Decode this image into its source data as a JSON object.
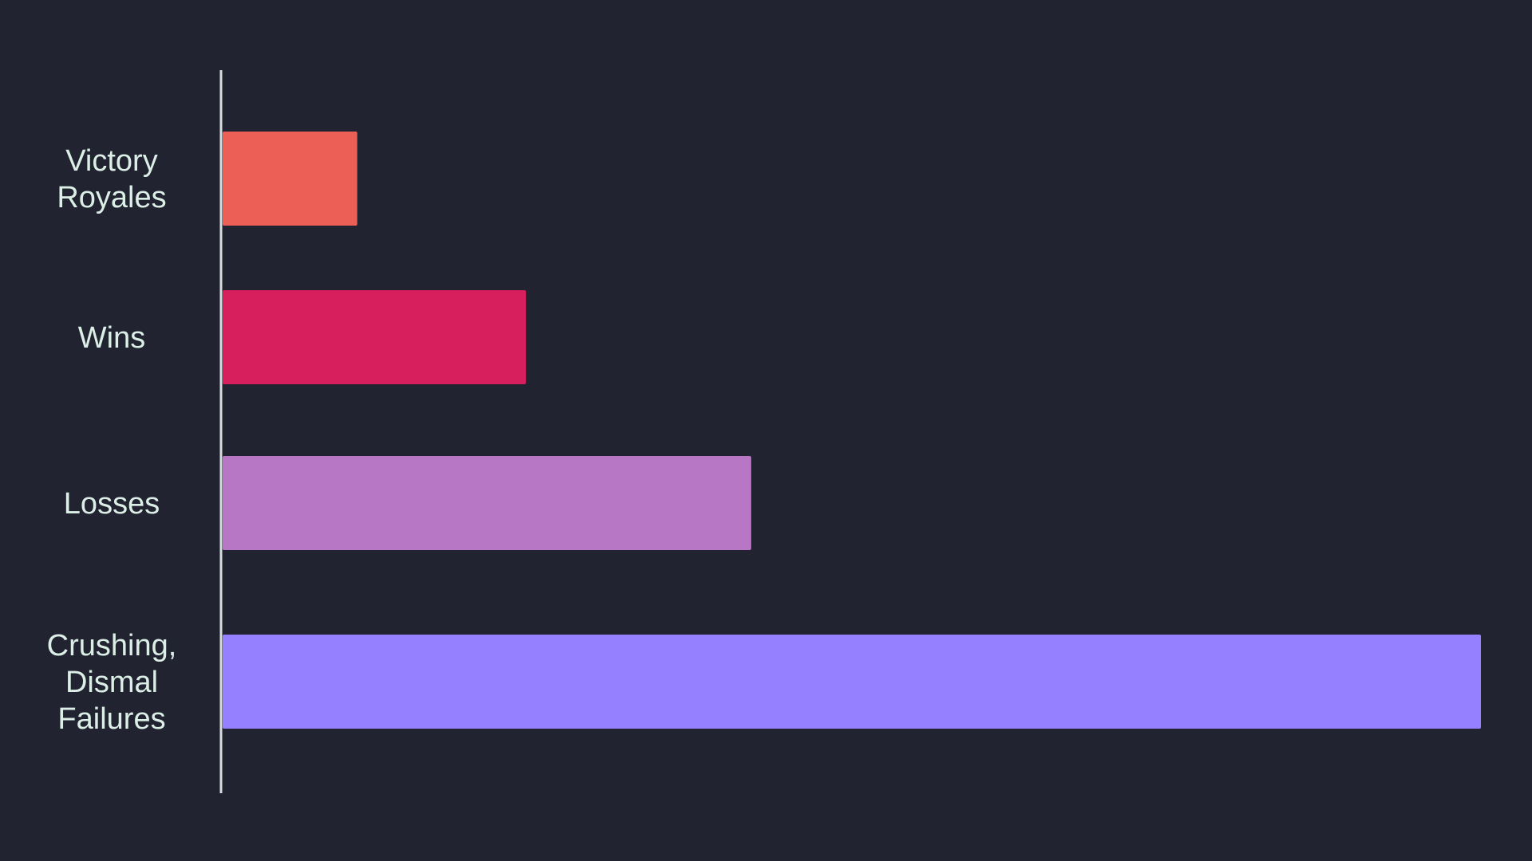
{
  "chart_data": {
    "type": "bar",
    "orientation": "horizontal",
    "categories": [
      [
        "Victory",
        "Royales"
      ],
      [
        "Wins"
      ],
      [
        "Losses"
      ],
      [
        "Crushing,",
        "Dismal",
        "Failures"
      ]
    ],
    "values": [
      10.7,
      24.1,
      42,
      100
    ],
    "colors": [
      "#eb5f57",
      "#d81f5d",
      "#b777c5",
      "#9581ff"
    ],
    "title": "",
    "xlabel": "",
    "ylabel": "",
    "xlim": [
      0,
      100
    ],
    "grid": false,
    "legend": "none"
  },
  "style": {
    "background": "#212331",
    "axis_color": "#d8dde0",
    "label_color": "#dcefe6"
  }
}
